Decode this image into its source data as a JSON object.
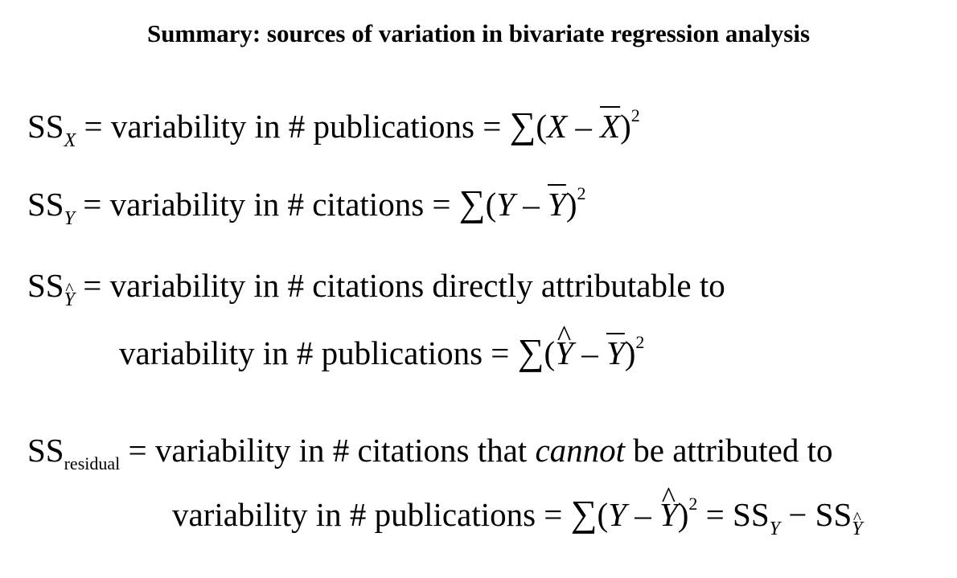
{
  "title": "Summary: sources of variation in bivariate regression analysis",
  "lines": {
    "ssx": {
      "ss": "SS",
      "sub": "X",
      "text": " = variability in # publications = "
    },
    "ssy": {
      "ss": "SS",
      "sub": "Y",
      "text": " = variability in # citations = "
    },
    "ssyhat": {
      "ss": "SS",
      "sub": "Y",
      "text1": " = variability in # citations directly attributable to",
      "text2": "variability in # publications = "
    },
    "ssres": {
      "ss": "SS",
      "sub": "residual",
      "text1a": " = variability in # citations that ",
      "emph": "cannot",
      "text1b": " be attributed to",
      "text2": "variability in # publications = "
    }
  },
  "math": {
    "sigma": "∑",
    "open": "(",
    "close": ")",
    "minus": " – ",
    "eq": " = ",
    "minus2": " − ",
    "var_x": "X",
    "var_y": "Y",
    "hat": "^",
    "exp": "2",
    "ss": "SS"
  }
}
